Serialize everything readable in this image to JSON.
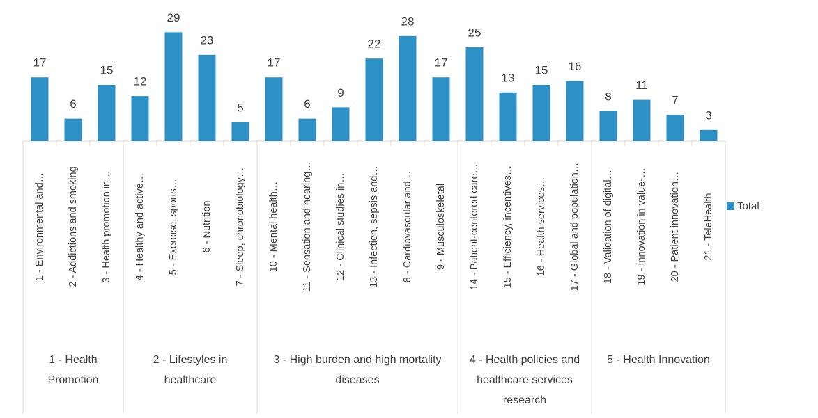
{
  "chart_data": {
    "type": "bar",
    "groups": [
      {
        "name": "1 - Health Promotion",
        "categories": [
          "1 - Environmental and…",
          "2 - Addictions and smoking",
          "3 - Health promotion in…"
        ]
      },
      {
        "name": "2 - Lifestyles in healthcare",
        "categories": [
          "4 - Healthy and active…",
          "5 - Exercise, sports…",
          "6 - Nutrition",
          "7 - Sleep, chronobiology…"
        ]
      },
      {
        "name": "3 - High burden and high mortality diseases",
        "categories": [
          "10 - Mental health…",
          "11 - Sensation and hearing…",
          "12 - Clinical studies in…",
          "13 - Infection, sepsis and…",
          "8 - Cardiovascular and…",
          "9 - Musculoskeletal"
        ]
      },
      {
        "name": "4 - Health policies and healthcare services research",
        "categories": [
          "14 - Patient-centered care…",
          "15 - Efficiency, incentives…",
          "16 - Health services…",
          "17 - Global and population…"
        ]
      },
      {
        "name": "5 - Health Innovation",
        "categories": [
          "18 - Validation of digital…",
          "19 - Innovation in value-…",
          "20 - Patient innovation…",
          "21 - TeleHealth"
        ]
      }
    ],
    "series": [
      {
        "name": "Total",
        "color": "#2e91c6",
        "values": [
          17,
          6,
          15,
          12,
          29,
          23,
          5,
          17,
          6,
          9,
          22,
          28,
          17,
          25,
          13,
          15,
          16,
          8,
          11,
          7,
          3
        ]
      }
    ],
    "ylim": [
      0,
      30
    ],
    "legend": "right"
  }
}
